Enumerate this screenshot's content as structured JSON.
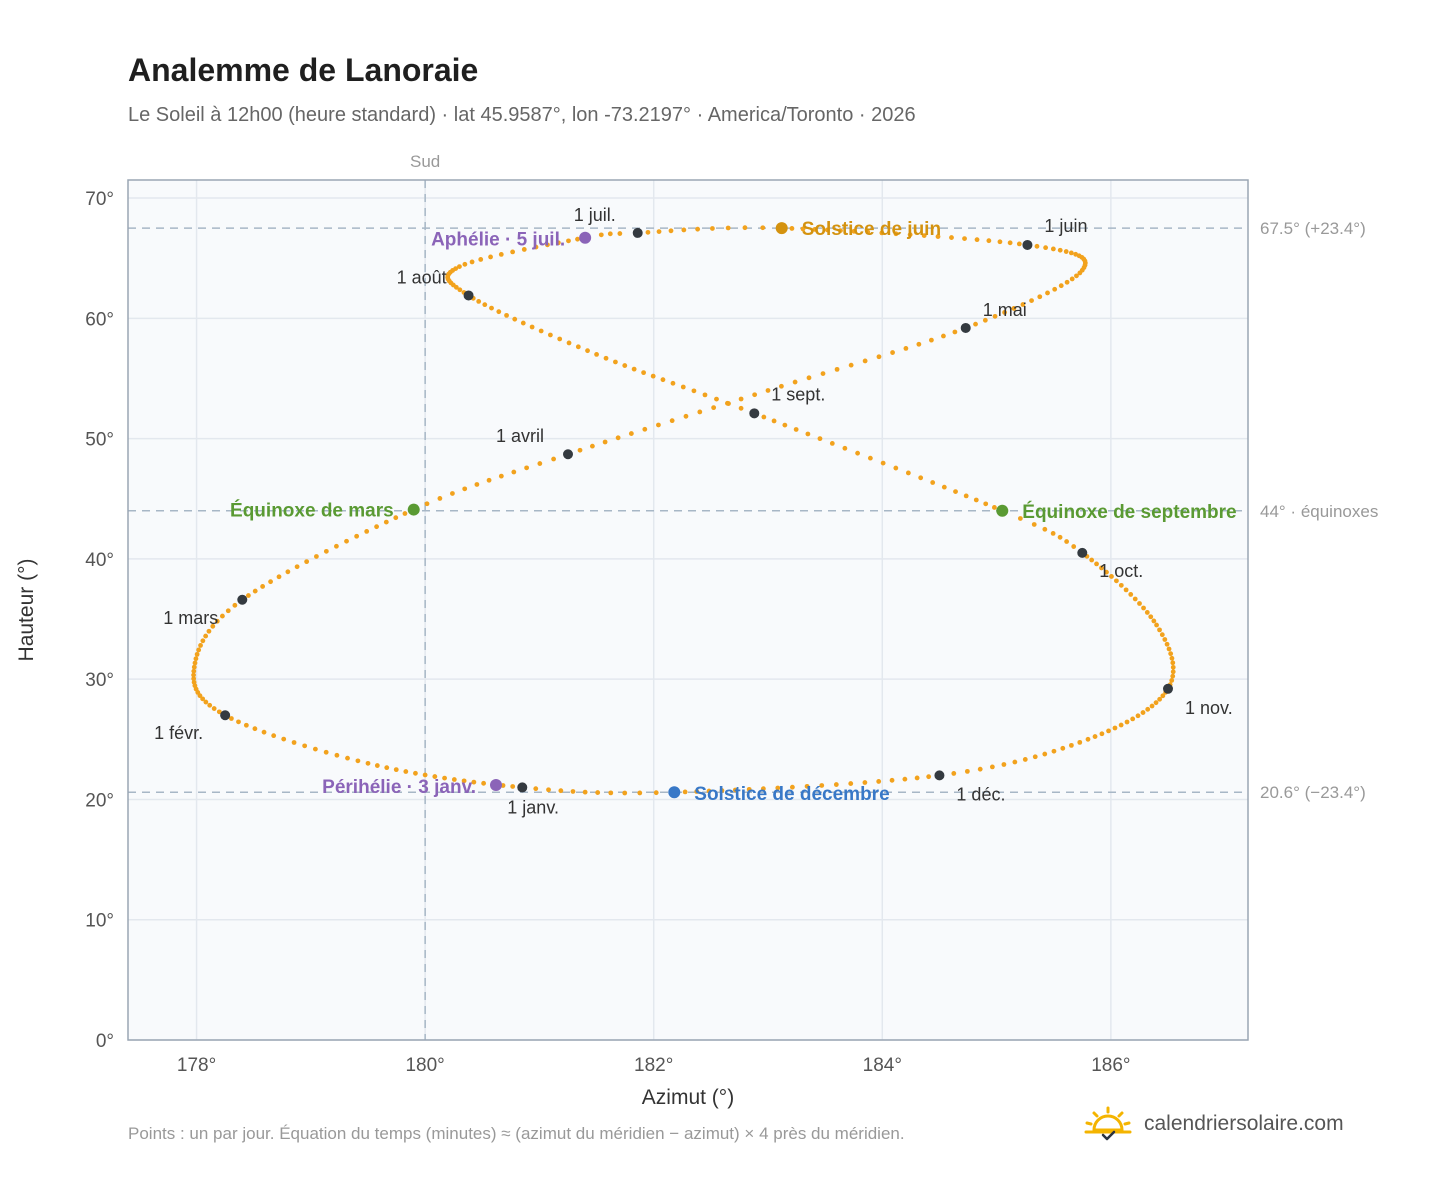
{
  "header": {
    "title": "Analemme de Lanoraie",
    "subtitle": "Le Soleil à 12h00 (heure standard) · lat 45.9587°, lon -73.2197° · America/Toronto · 2026"
  },
  "footer": {
    "note": "Points : un par jour. Équation du temps (minutes) ≈ (azimut du méridien − azimut) × 4 près du méridien.",
    "brand": "calendriersolaire.com",
    "brand_icon": "sun-check-icon"
  },
  "colors": {
    "path": "#f2a21d",
    "month_marker": "#343a40",
    "solstice_june": "#d4920f",
    "solstice_december": "#3878c7",
    "equinox": "#5a9a33",
    "apsis": "#8b64b8",
    "ref_line": "#a7b7c6",
    "grid": "#e3e8ee",
    "plot_bg": "#f8fafc",
    "frame": "#9aa6b4"
  },
  "chart_data": {
    "type": "scatter",
    "xlabel": "Azimut (°)",
    "ylabel": "Hauteur (°)",
    "xlim": [
      177.4,
      187.2
    ],
    "ylim": [
      0,
      71.5
    ],
    "x_ticks": [
      178,
      180,
      182,
      184,
      186
    ],
    "x_tick_labels": [
      "178°",
      "180°",
      "182°",
      "184°",
      "186°"
    ],
    "y_ticks": [
      0,
      10,
      20,
      30,
      40,
      50,
      60,
      70
    ],
    "y_tick_labels": [
      "0°",
      "10°",
      "20°",
      "30°",
      "40°",
      "50°",
      "60°",
      "70°"
    ],
    "grid": true,
    "vertical_reference": {
      "x": 180,
      "label": "Sud"
    },
    "horizontal_references": [
      {
        "y": 67.5,
        "label": "67.5° (+23.4°)"
      },
      {
        "y": 44.0,
        "label": "44° · équinoxes"
      },
      {
        "y": 20.6,
        "label": "20.6° (−23.4°)"
      }
    ],
    "daily_points_note": "one point per day",
    "month_markers": [
      {
        "label": "1 janv.",
        "az": 180.85,
        "alt": 21.0
      },
      {
        "label": "1 févr.",
        "az": 178.25,
        "alt": 27.0
      },
      {
        "label": "1 mars",
        "az": 178.4,
        "alt": 36.6
      },
      {
        "label": "1 avril",
        "az": 181.25,
        "alt": 48.7
      },
      {
        "label": "1 mai",
        "az": 184.73,
        "alt": 59.2
      },
      {
        "label": "1 juin",
        "az": 185.27,
        "alt": 66.1
      },
      {
        "label": "1 juil.",
        "az": 181.86,
        "alt": 67.1
      },
      {
        "label": "1 août",
        "az": 180.38,
        "alt": 61.9
      },
      {
        "label": "1 sept.",
        "az": 182.88,
        "alt": 52.1
      },
      {
        "label": "1 oct.",
        "az": 185.75,
        "alt": 40.5
      },
      {
        "label": "1 nov.",
        "az": 186.5,
        "alt": 29.2
      },
      {
        "label": "1 déc.",
        "az": 184.5,
        "alt": 22.0
      }
    ],
    "events": [
      {
        "label": "Solstice de juin",
        "az": 183.12,
        "alt": 67.5,
        "kind": "solstice_june"
      },
      {
        "label": "Solstice de décembre",
        "az": 182.18,
        "alt": 20.6,
        "kind": "solstice_december"
      },
      {
        "label": "Équinoxe de mars",
        "az": 179.9,
        "alt": 44.1,
        "kind": "equinox"
      },
      {
        "label": "Équinoxe de septembre",
        "az": 185.05,
        "alt": 44.0,
        "kind": "equinox"
      },
      {
        "label": "Aphélie · 5 juil.",
        "az": 181.4,
        "alt": 66.7,
        "kind": "apsis"
      },
      {
        "label": "Périhélie · 3 janv.",
        "az": 180.62,
        "alt": 21.2,
        "kind": "apsis"
      }
    ],
    "path_anchors": [
      {
        "day": 0,
        "az": 180.85,
        "alt": 21.0
      },
      {
        "day": 16,
        "az": 179.5,
        "alt": 23.0
      },
      {
        "day": 31,
        "az": 178.25,
        "alt": 27.0
      },
      {
        "day": 45,
        "az": 177.98,
        "alt": 31.0
      },
      {
        "day": 59,
        "az": 178.4,
        "alt": 36.6
      },
      {
        "day": 78,
        "az": 179.9,
        "alt": 44.1
      },
      {
        "day": 90,
        "az": 181.25,
        "alt": 48.7
      },
      {
        "day": 105,
        "az": 183.0,
        "alt": 54.0
      },
      {
        "day": 120,
        "az": 184.73,
        "alt": 59.2
      },
      {
        "day": 136,
        "az": 185.75,
        "alt": 64.0
      },
      {
        "day": 151,
        "az": 185.27,
        "alt": 66.1
      },
      {
        "day": 171,
        "az": 183.12,
        "alt": 67.5
      },
      {
        "day": 181,
        "az": 181.86,
        "alt": 67.1
      },
      {
        "day": 185,
        "az": 181.4,
        "alt": 66.7
      },
      {
        "day": 198,
        "az": 180.3,
        "alt": 64.3
      },
      {
        "day": 212,
        "az": 180.38,
        "alt": 61.9
      },
      {
        "day": 228,
        "az": 181.5,
        "alt": 57.0
      },
      {
        "day": 243,
        "az": 182.88,
        "alt": 52.1
      },
      {
        "day": 265,
        "az": 185.05,
        "alt": 44.0
      },
      {
        "day": 273,
        "az": 185.75,
        "alt": 40.5
      },
      {
        "day": 290,
        "az": 186.4,
        "alt": 34.5
      },
      {
        "day": 304,
        "az": 186.5,
        "alt": 29.2
      },
      {
        "day": 320,
        "az": 185.8,
        "alt": 25.0
      },
      {
        "day": 334,
        "az": 184.5,
        "alt": 22.0
      },
      {
        "day": 354,
        "az": 182.18,
        "alt": 20.6
      },
      {
        "day": 365,
        "az": 180.85,
        "alt": 21.0
      }
    ]
  }
}
